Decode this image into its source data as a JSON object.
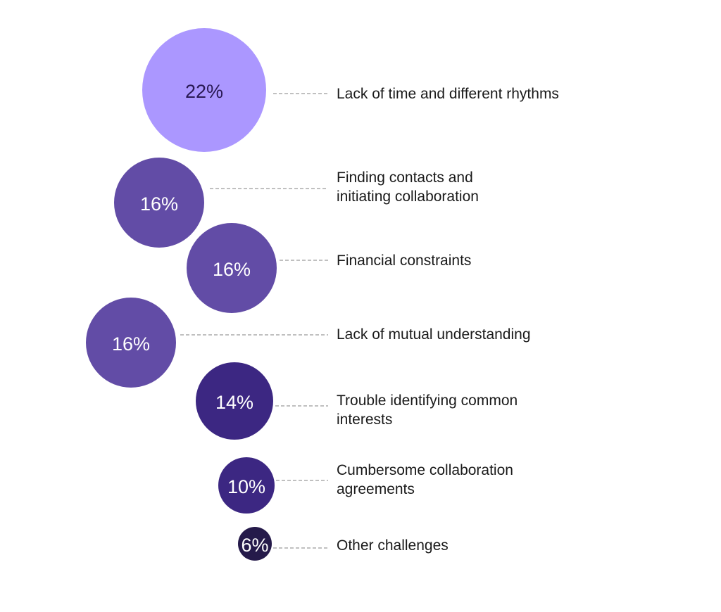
{
  "chart_data": {
    "type": "bubble",
    "items": [
      {
        "label": "Lack of time and different rhythms",
        "value": 22,
        "value_label": "22%",
        "color": "#ab97ff",
        "text_color": "#2a1a55"
      },
      {
        "label": "Finding contacts and initiating collaboration",
        "value": 16,
        "value_label": "16%",
        "color": "#624ca6",
        "text_color": "#ffffff"
      },
      {
        "label": "Financial constraints",
        "value": 16,
        "value_label": "16%",
        "color": "#624ca6",
        "text_color": "#ffffff"
      },
      {
        "label": "Lack of mutual understanding",
        "value": 16,
        "value_label": "16%",
        "color": "#624ca6",
        "text_color": "#ffffff"
      },
      {
        "label": "Trouble identifying common interests",
        "value": 14,
        "value_label": "14%",
        "color": "#3c2782",
        "text_color": "#ffffff"
      },
      {
        "label": "Cumbersome collaboration agreements",
        "value": 10,
        "value_label": "10%",
        "color": "#3c2782",
        "text_color": "#ffffff"
      },
      {
        "label": "Other challenges",
        "value": 6,
        "value_label": "6%",
        "color": "#251a4a",
        "text_color": "#ffffff"
      }
    ]
  }
}
